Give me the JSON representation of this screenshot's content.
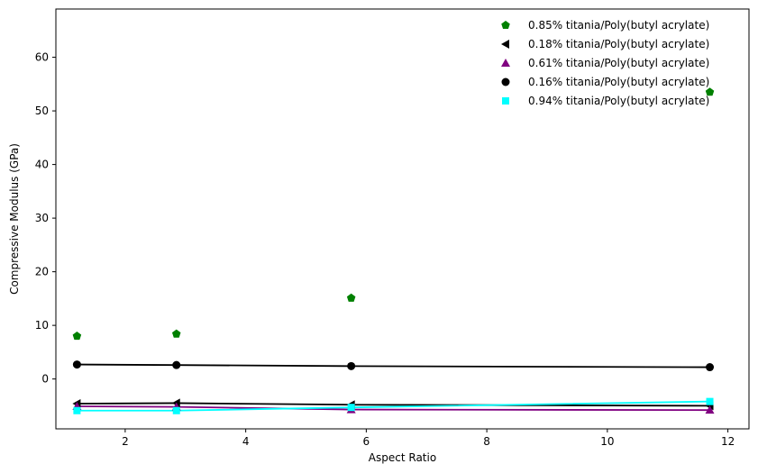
{
  "chart_data": {
    "type": "scatter",
    "title": "",
    "xlabel": "Aspect Ratio",
    "ylabel": "Compressive Modulus (GPa)",
    "xlim": [
      0.85,
      12.35
    ],
    "ylim": [
      -9.3,
      69.0
    ],
    "xticks": [
      2,
      4,
      6,
      8,
      10,
      12
    ],
    "yticks": [
      0,
      10,
      20,
      30,
      40,
      50,
      60
    ],
    "grid": false,
    "legend_position": "top-right",
    "series": [
      {
        "name": "0.85% titania/Poly(butyl acrylate)",
        "color": "#008000",
        "marker": "pentagon",
        "line": false,
        "x": [
          1.2,
          2.85,
          5.75,
          11.7
        ],
        "y": [
          8.0,
          8.4,
          15.1,
          53.5
        ]
      },
      {
        "name": "0.18% titania/Poly(butyl acrylate)",
        "color": "#000000",
        "marker": "triangle-left",
        "line": true,
        "x": [
          1.2,
          2.85,
          5.75,
          11.7
        ],
        "y": [
          -4.6,
          -4.5,
          -4.8,
          -5.0
        ]
      },
      {
        "name": "0.61% titania/Poly(butyl acrylate)",
        "color": "#800080",
        "marker": "triangle-up",
        "line": true,
        "x": [
          1.2,
          2.85,
          5.75,
          11.7
        ],
        "y": [
          -5.1,
          -5.2,
          -5.7,
          -5.8
        ]
      },
      {
        "name": "0.16% titania/Poly(butyl acrylate)",
        "color": "#000000",
        "marker": "circle",
        "line": true,
        "x": [
          1.2,
          2.85,
          5.75,
          11.7
        ],
        "y": [
          2.7,
          2.6,
          2.4,
          2.2
        ]
      },
      {
        "name": "0.94% titania/Poly(butyl acrylate)",
        "color": "#00FFFF",
        "marker": "square",
        "line": true,
        "x": [
          1.2,
          2.85,
          5.75,
          11.7
        ],
        "y": [
          -5.9,
          -5.9,
          -5.3,
          -4.2
        ]
      }
    ]
  }
}
